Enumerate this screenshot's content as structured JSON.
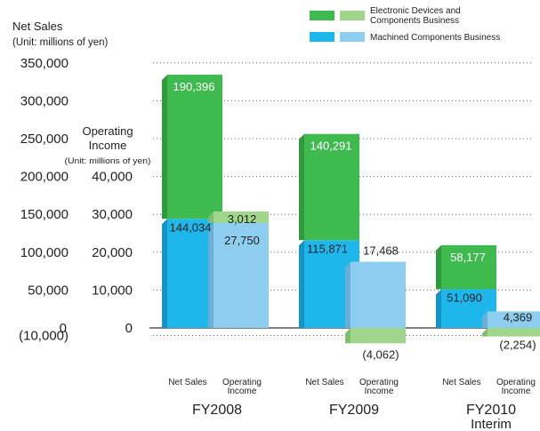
{
  "chart_data": {
    "type": "bar",
    "title": "",
    "legend": {
      "placement": "top-right",
      "entries": [
        {
          "label": "Electronic Devices and Components Business",
          "color_dark": "#3fba4e",
          "color_light": "#9fd68b"
        },
        {
          "label": "Machined Components Business",
          "color_dark": "#1eb7ec",
          "color_light": "#8ccdf0"
        }
      ]
    },
    "left_axis": {
      "title_line1": "Net Sales",
      "title_line2": "(Unit: millions of yen)",
      "ticks": [
        "350,000",
        "300,000",
        "250,000",
        "200,000",
        "150,000",
        "100,000",
        "50,000",
        "0",
        "(10,000)"
      ],
      "ylim": [
        -10000,
        350000
      ]
    },
    "right_axis": {
      "title_line1": "Operating",
      "title_line2": "Income",
      "title_line3": "(Unit: millions of yen)",
      "ticks": [
        "40,000",
        "30,000",
        "20,000",
        "10,000",
        "0"
      ],
      "ylim": [
        -10000,
        40000
      ]
    },
    "groups": [
      {
        "label_line1": "FY2008",
        "label_line2": "",
        "net_sales_label": "Net Sales",
        "op_income_label_line1": "Operating",
        "op_income_label_line2": "Income",
        "net_sales": {
          "machined": 144034,
          "electronic": 190396,
          "machined_label": "144,034",
          "electronic_label": "190,396"
        },
        "op_income": {
          "machined": 27750,
          "electronic": 3012,
          "machined_label": "27,750",
          "electronic_label": "3,012"
        }
      },
      {
        "label_line1": "FY2009",
        "label_line2": "",
        "net_sales_label": "Net Sales",
        "op_income_label_line1": "Operating",
        "op_income_label_line2": "Income",
        "net_sales": {
          "machined": 115871,
          "electronic": 140291,
          "machined_label": "115,871",
          "electronic_label": "140,291"
        },
        "op_income": {
          "machined": 17468,
          "electronic": -4062,
          "machined_label": "17,468",
          "electronic_label": "(4,062)"
        }
      },
      {
        "label_line1": "FY2010",
        "label_line2": "Interim",
        "net_sales_label": "Net Sales",
        "op_income_label_line1": "Operating",
        "op_income_label_line2": "Income",
        "net_sales": {
          "machined": 51090,
          "electronic": 58177,
          "machined_label": "51,090",
          "electronic_label": "58,177"
        },
        "op_income": {
          "machined": 4369,
          "electronic": -2254,
          "machined_label": "4,369",
          "electronic_label": "(2,254)"
        }
      }
    ]
  },
  "colors": {
    "electronic_dark": "#3fba4e",
    "electronic_dark_side": "#2e9a3c",
    "electronic_light": "#9fd68b",
    "electronic_light_side": "#7fbf6d",
    "machined_dark": "#1eb7ec",
    "machined_dark_side": "#1394c4",
    "machined_light": "#8ccdf0",
    "machined_light_side": "#6aafd6"
  }
}
